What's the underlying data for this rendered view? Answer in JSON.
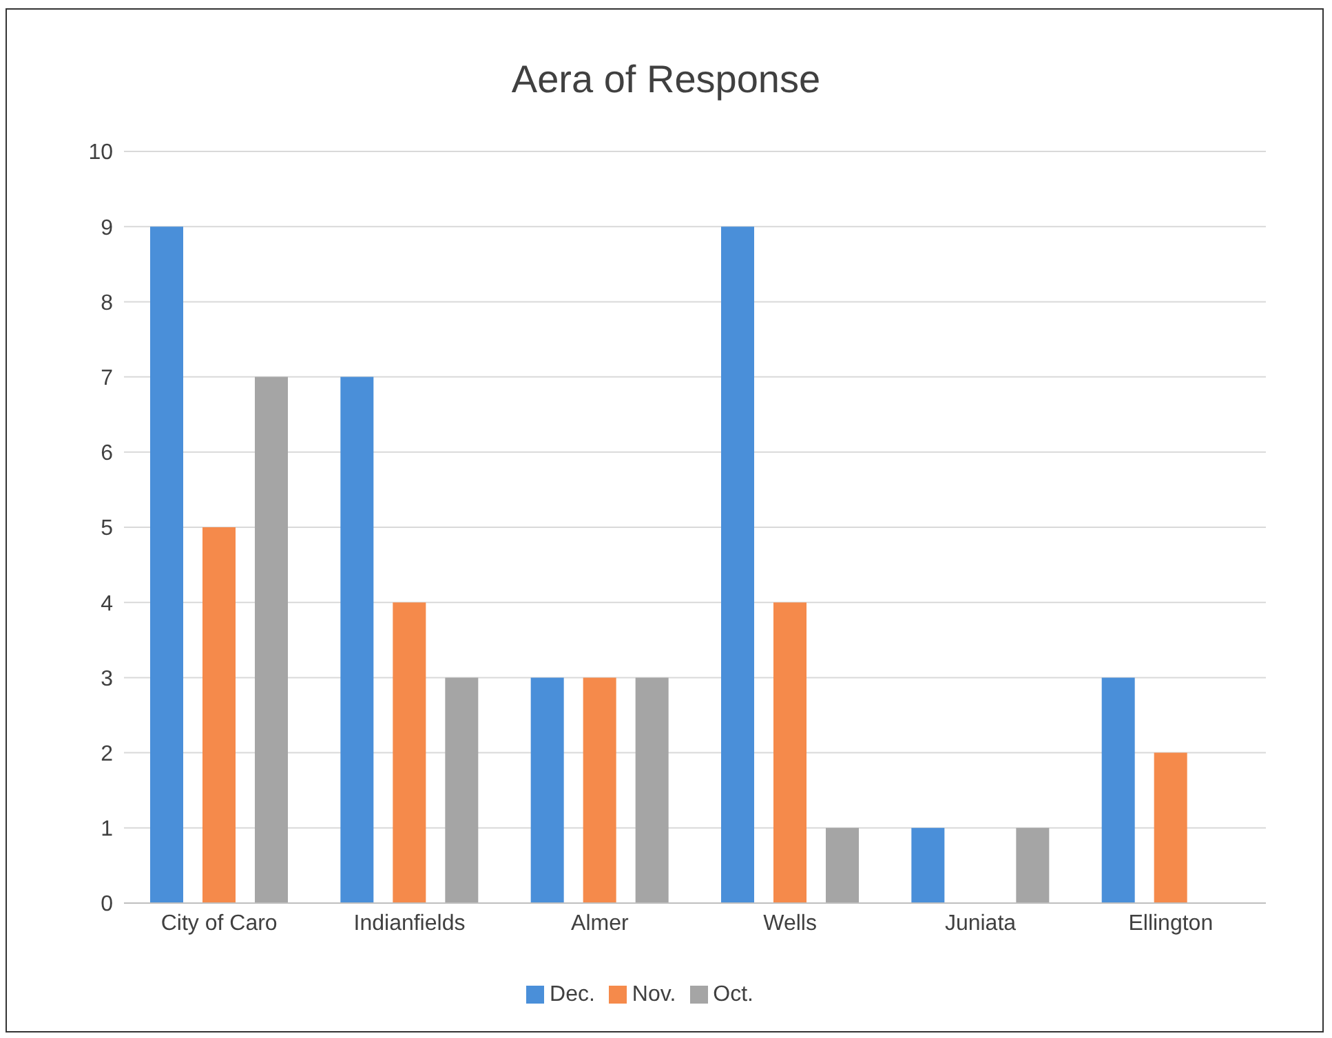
{
  "chart_data": {
    "type": "bar",
    "title": "Aera of Response",
    "categories": [
      "City of Caro",
      "Indianfields",
      "Almer",
      "Wells",
      "Juniata",
      "Ellington"
    ],
    "series": [
      {
        "name": "Dec.",
        "color": "#4a8fd9",
        "values": [
          9,
          7,
          3,
          9,
          1,
          3
        ]
      },
      {
        "name": "Nov.",
        "color": "#f58a4b",
        "values": [
          5,
          4,
          3,
          4,
          0,
          2
        ]
      },
      {
        "name": "Oct.",
        "color": "#a5a5a5",
        "values": [
          7,
          3,
          3,
          1,
          1,
          0
        ]
      }
    ],
    "ylim": [
      0,
      10
    ],
    "yticks": [
      0,
      1,
      2,
      3,
      4,
      5,
      6,
      7,
      8,
      9,
      10
    ],
    "grid": "y",
    "legend": "bottom"
  }
}
